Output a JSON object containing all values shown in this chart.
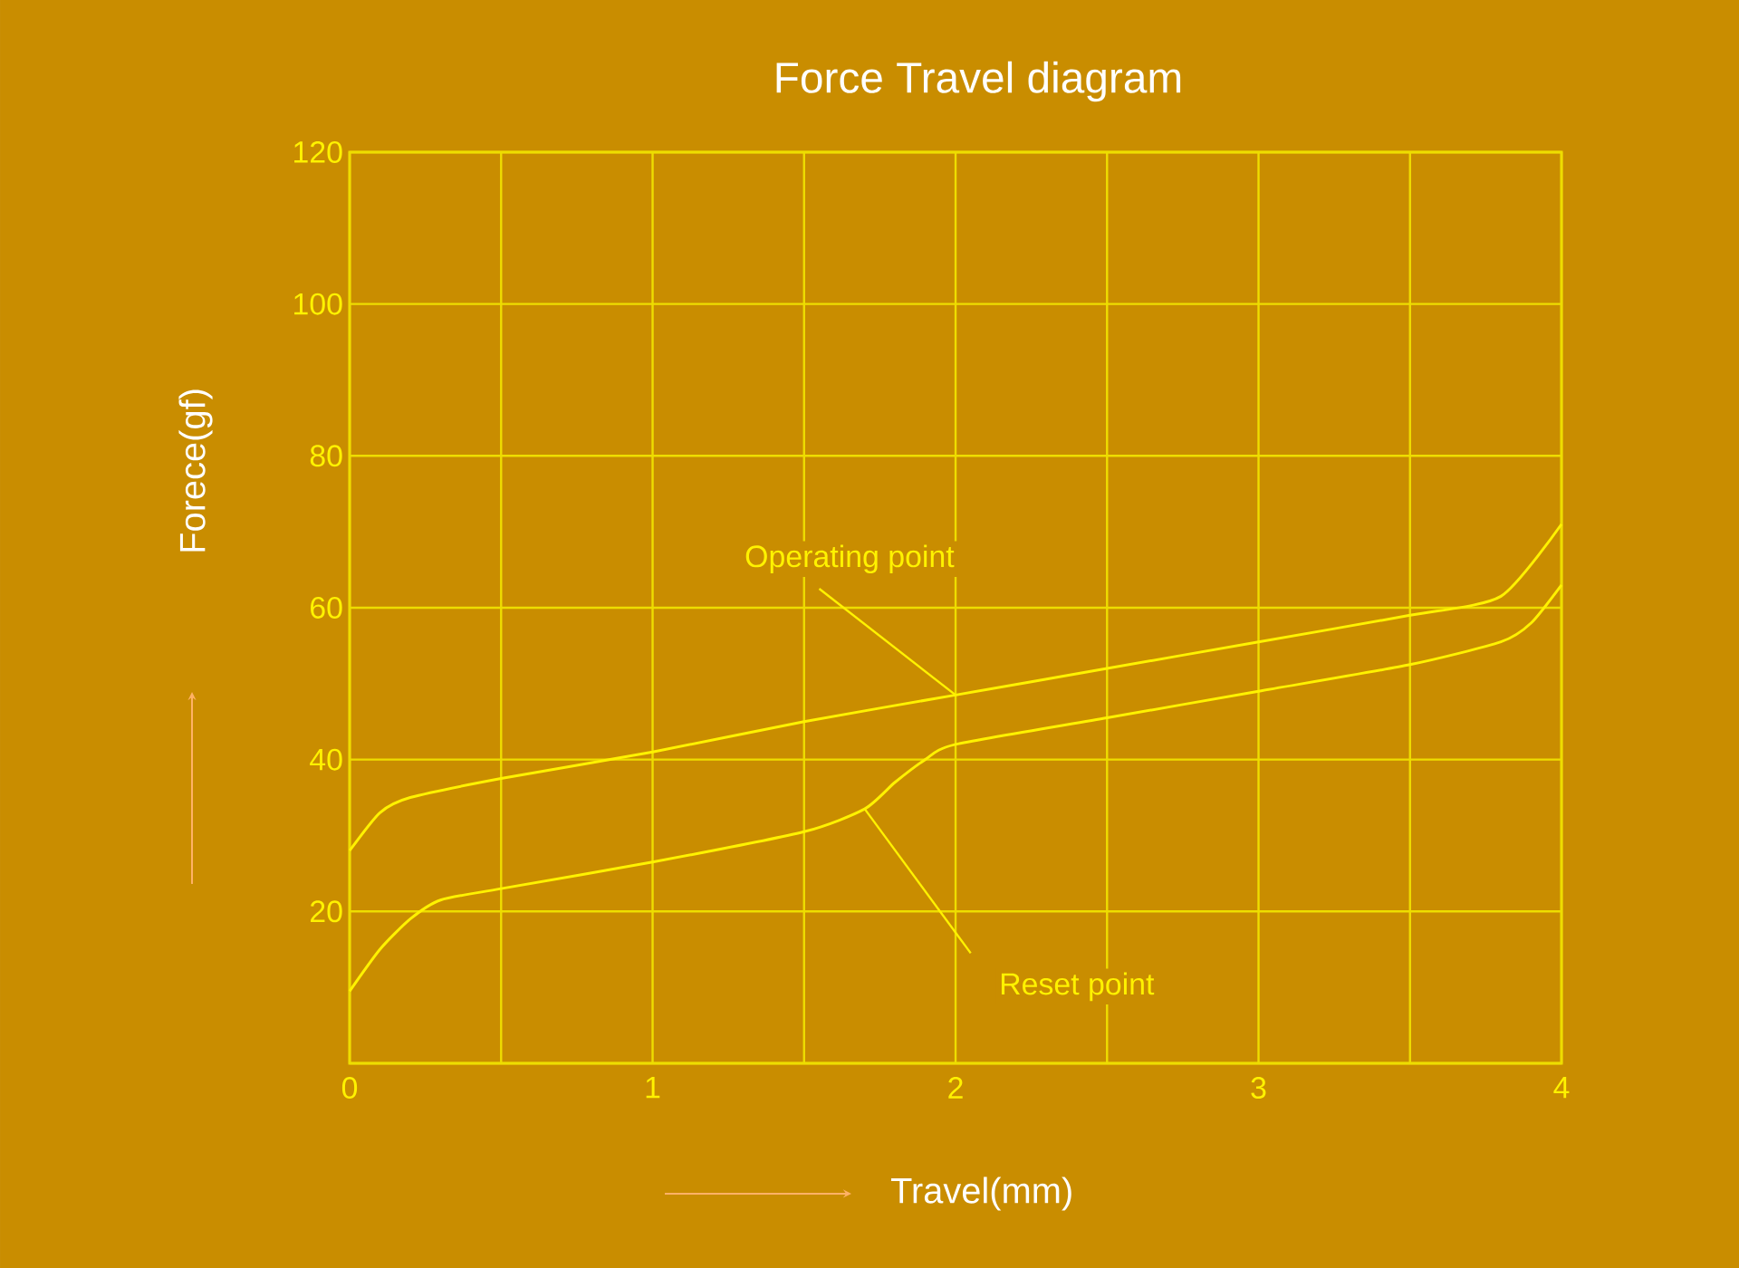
{
  "chart_data": {
    "type": "line",
    "title": "Force Travel diagram",
    "xlabel": "Travel(mm)",
    "ylabel": "Forece(gf)",
    "x": [
      0,
      0.1,
      0.2,
      0.5,
      1,
      1.5,
      2,
      2.5,
      3,
      3.5,
      3.8,
      4
    ],
    "series": [
      {
        "color": "#fff200",
        "values": [
          28,
          33,
          35,
          37.5,
          41,
          45,
          48.5,
          52,
          55.5,
          59,
          61.5,
          71
        ]
      },
      {
        "color": "#fff200",
        "x": [
          0,
          0.1,
          0.2,
          0.3,
          0.5,
          1,
          1.5,
          1.7,
          1.8,
          1.9,
          2,
          2.5,
          3,
          3.5,
          3.8,
          3.9,
          4
        ],
        "values": [
          9.5,
          15,
          19,
          21.5,
          23,
          26.5,
          30.5,
          33.5,
          37,
          40,
          42,
          45.5,
          49,
          52.5,
          55.5,
          58,
          63
        ]
      }
    ],
    "xlim": [
      0,
      4
    ],
    "ylim": [
      0,
      120
    ],
    "xticks": [
      0,
      {
        "value": 0.5,
        "label": null
      },
      1,
      {
        "value": 1.5,
        "label": null
      },
      2,
      {
        "value": 2.5,
        "label": null
      },
      3,
      {
        "value": 3.5,
        "label": null
      },
      4
    ],
    "yticks": [
      {
        "value": 0,
        "label": null
      },
      20,
      40,
      60,
      80,
      100,
      120
    ],
    "grid": true,
    "annotations": [
      {
        "text": "Operating point",
        "x": 2,
        "y": 48.5
      },
      {
        "text": "Reset point",
        "x": 1.7,
        "y": 33.5
      }
    ]
  }
}
